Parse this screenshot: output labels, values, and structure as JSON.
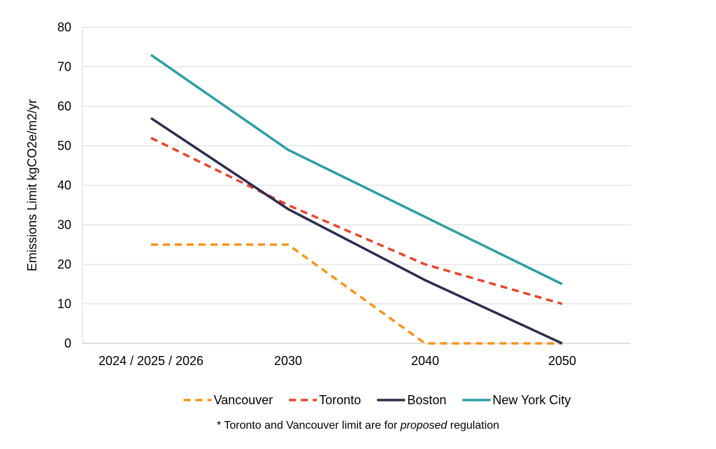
{
  "chart_data": {
    "type": "line",
    "categories": [
      "2024 / 2025 / 2026",
      "2030",
      "2040",
      "2050"
    ],
    "ylabel": "Emissions Limit kgCO2e/m2/yr",
    "xlabel": "",
    "ylim": [
      0,
      80
    ],
    "yticks": [
      0,
      10,
      20,
      30,
      40,
      50,
      60,
      70,
      80
    ],
    "grid": "horizontal",
    "legend_position": "bottom",
    "series": [
      {
        "name": "Vancouver",
        "values": [
          25,
          25,
          0,
          0
        ],
        "color": "#f7941d",
        "dashed": true
      },
      {
        "name": "Toronto",
        "values": [
          52,
          35,
          20,
          10
        ],
        "color": "#e8452c",
        "dashed": true
      },
      {
        "name": "Boston",
        "values": [
          57,
          34,
          16,
          0
        ],
        "color": "#2e2d4d",
        "dashed": false
      },
      {
        "name": "New York City",
        "values": [
          73,
          49,
          32,
          15
        ],
        "color": "#2b9ea3",
        "dashed": false
      }
    ]
  },
  "note": {
    "prefix": "* Toronto and Vancouver limit are for ",
    "emphasis": "proposed",
    "suffix": " regulation"
  }
}
